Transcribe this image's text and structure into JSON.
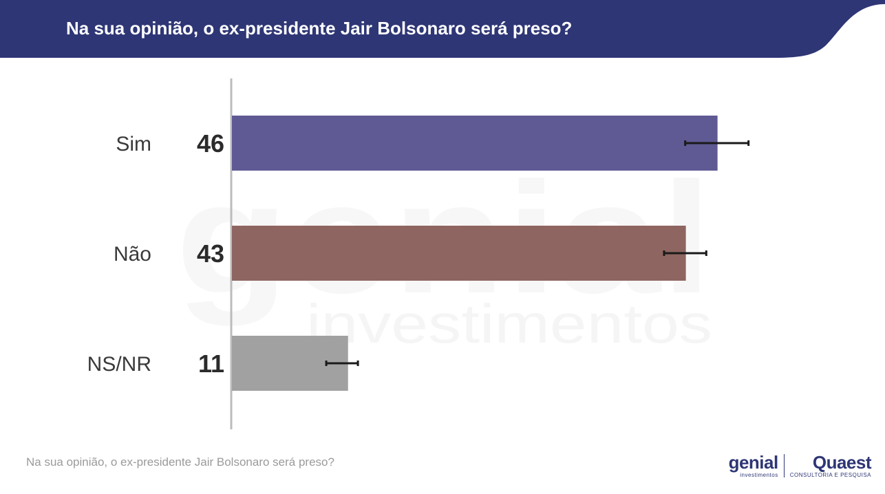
{
  "header": {
    "title": "Na sua opinião, o ex-presidente Jair Bolsonaro será preso?"
  },
  "footer": {
    "question": "Na sua opinião, o ex-presidente Jair Bolsonaro será preso?"
  },
  "logos": {
    "genial": {
      "name": "genial",
      "sub": "investimentos"
    },
    "quaest": {
      "name": "Quaest",
      "sub": "CONSULTORIA E PESQUISA"
    },
    "watermark": {
      "main": "genial",
      "sub": "investimentos"
    }
  },
  "colors": {
    "header_bg": "#2e3675",
    "bar_sim": "#5f5a93",
    "bar_nao": "#8e6560",
    "bar_nsnr": "#a1a1a1",
    "axis": "#bcbcbc",
    "error_bar": "#1a1a1a"
  },
  "chart_data": {
    "type": "bar",
    "orientation": "horizontal",
    "title": "",
    "categories": [
      "Sim",
      "Não",
      "NS/NR"
    ],
    "values": [
      46,
      43,
      11
    ],
    "value_labels": [
      "46",
      "43",
      "11"
    ],
    "error_low": [
      43,
      41,
      9
    ],
    "error_high": [
      49,
      45,
      12
    ],
    "xlim": [
      0,
      50
    ],
    "grid": false,
    "legend": "none"
  }
}
